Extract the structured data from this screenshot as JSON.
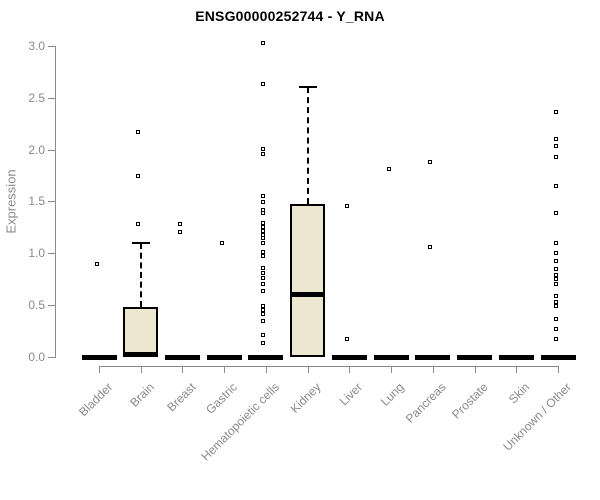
{
  "header": {
    "title": "ENSG00000252744 - Y_RNA"
  },
  "colors": {
    "box_fill": "#ECE7CE",
    "box_border": "#000000",
    "median": "#000000",
    "axis": "#8a8a8a",
    "tick_label": "#8a8a8a",
    "title": "#000000",
    "outlier_fill": "#ffffff"
  },
  "chart_data": {
    "type": "boxplot",
    "title": "ENSG00000252744 - Y_RNA",
    "xlabel": "",
    "ylabel": "Expression",
    "ylim": [
      0.0,
      3.0
    ],
    "yticks": [
      "0.0",
      "0.5",
      "1.0",
      "1.5",
      "2.0",
      "2.5",
      "3.0"
    ],
    "ytick_values": [
      0.0,
      0.5,
      1.0,
      1.5,
      2.0,
      2.5,
      3.0
    ],
    "grid": false,
    "legend": "none",
    "categories": [
      "Bladder",
      "Brain",
      "Breast",
      "Gastric",
      "Hematopoietic cells",
      "Kidney",
      "Liver",
      "Lung",
      "Pancreas",
      "Prostate",
      "Skin",
      "Unknown / Other"
    ],
    "series": [
      {
        "name": "Bladder",
        "q1": 0.0,
        "median": 0.0,
        "q3": 0.0,
        "whisker_low": 0.0,
        "whisker_high": 0.0,
        "outliers": [
          0.89
        ]
      },
      {
        "name": "Brain",
        "q1": 0.0,
        "median": 0.02,
        "q3": 0.48,
        "whisker_low": 0.0,
        "whisker_high": 1.1,
        "outliers": [
          1.28,
          1.74,
          2.17
        ]
      },
      {
        "name": "Breast",
        "q1": 0.0,
        "median": 0.0,
        "q3": 0.0,
        "whisker_low": 0.0,
        "whisker_high": 0.0,
        "outliers": [
          1.2,
          1.28
        ]
      },
      {
        "name": "Gastric",
        "q1": 0.0,
        "median": 0.0,
        "q3": 0.0,
        "whisker_low": 0.0,
        "whisker_high": 0.0,
        "outliers": [
          1.09
        ]
      },
      {
        "name": "Hematopoietic cells",
        "q1": 0.0,
        "median": 0.0,
        "q3": 0.0,
        "whisker_low": 0.0,
        "whisker_high": 0.0,
        "outliers": [
          3.02,
          2.63,
          2.0,
          1.95,
          1.55,
          1.49,
          1.41,
          1.38,
          1.29,
          1.25,
          1.21,
          1.17,
          1.14,
          1.09,
          1.01,
          0.97,
          0.85,
          0.81,
          0.76,
          0.7,
          0.63,
          0.49,
          0.45,
          0.41,
          0.34,
          0.21,
          0.13
        ]
      },
      {
        "name": "Kidney",
        "q1": 0.0,
        "median": 0.6,
        "q3": 1.48,
        "whisker_low": 0.0,
        "whisker_high": 2.6,
        "outliers": []
      },
      {
        "name": "Liver",
        "q1": 0.0,
        "median": 0.0,
        "q3": 0.0,
        "whisker_low": 0.0,
        "whisker_high": 0.0,
        "outliers": [
          1.45,
          0.17
        ]
      },
      {
        "name": "Lung",
        "q1": 0.0,
        "median": 0.0,
        "q3": 0.0,
        "whisker_low": 0.0,
        "whisker_high": 0.0,
        "outliers": [
          1.81
        ]
      },
      {
        "name": "Pancreas",
        "q1": 0.0,
        "median": 0.0,
        "q3": 0.0,
        "whisker_low": 0.0,
        "whisker_high": 0.0,
        "outliers": [
          1.88,
          1.06
        ]
      },
      {
        "name": "Prostate",
        "q1": 0.0,
        "median": 0.0,
        "q3": 0.0,
        "whisker_low": 0.0,
        "whisker_high": 0.0,
        "outliers": []
      },
      {
        "name": "Skin",
        "q1": 0.0,
        "median": 0.0,
        "q3": 0.0,
        "whisker_low": 0.0,
        "whisker_high": 0.0,
        "outliers": []
      },
      {
        "name": "Unknown / Other",
        "q1": 0.0,
        "median": 0.0,
        "q3": 0.0,
        "whisker_low": 0.0,
        "whisker_high": 0.0,
        "outliers": [
          2.36,
          2.1,
          2.03,
          1.92,
          1.64,
          1.38,
          1.09,
          1.0,
          0.92,
          0.84,
          0.79,
          0.75,
          0.7,
          0.58,
          0.53,
          0.49,
          0.36,
          0.27,
          0.17
        ]
      }
    ]
  }
}
